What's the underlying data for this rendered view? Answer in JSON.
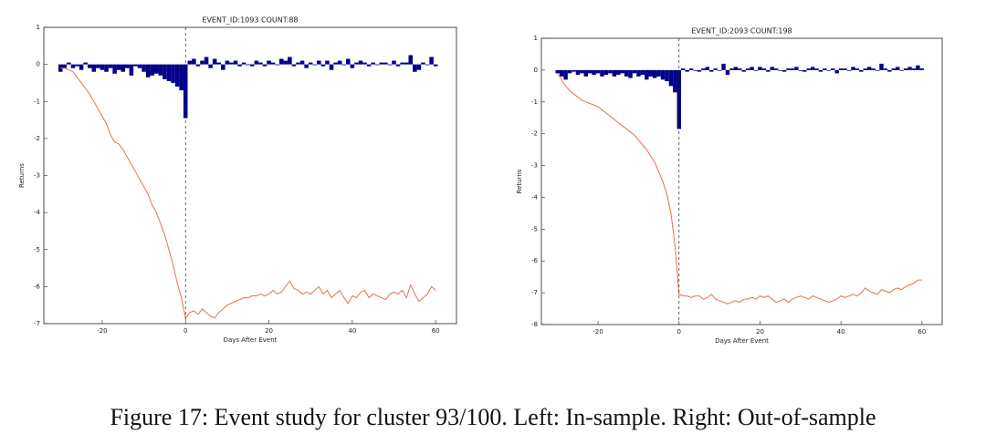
{
  "chart_data": [
    {
      "type": "event-study",
      "title": "EVENT_ID:1093    COUNT:88",
      "xlabel": "Days After Event",
      "ylabel": "Returns",
      "x": [
        -30,
        -29,
        -28,
        -27,
        -26,
        -25,
        -24,
        -23,
        -22,
        -21,
        -20,
        -19,
        -18,
        -17,
        -16,
        -15,
        -14,
        -13,
        -12,
        -11,
        -10,
        -9,
        -8,
        -7,
        -6,
        -5,
        -4,
        -3,
        -2,
        -1,
        0,
        1,
        2,
        3,
        4,
        5,
        6,
        7,
        8,
        9,
        10,
        11,
        12,
        13,
        14,
        15,
        16,
        17,
        18,
        19,
        20,
        21,
        22,
        23,
        24,
        25,
        26,
        27,
        28,
        29,
        30,
        31,
        32,
        33,
        34,
        35,
        36,
        37,
        38,
        39,
        40,
        41,
        42,
        43,
        44,
        45,
        46,
        47,
        48,
        49,
        50,
        51,
        52,
        53,
        54,
        55,
        56,
        57,
        58,
        59,
        60
      ],
      "series": [
        {
          "type": "bar",
          "color": "#00008b",
          "values": [
            -0.2,
            -0.1,
            0.05,
            -0.1,
            -0.05,
            -0.15,
            0.05,
            -0.1,
            -0.2,
            -0.1,
            -0.15,
            -0.2,
            -0.1,
            -0.25,
            -0.15,
            -0.2,
            -0.1,
            -0.3,
            -0.05,
            -0.1,
            -0.2,
            -0.35,
            -0.3,
            -0.25,
            -0.3,
            -0.4,
            -0.45,
            -0.5,
            -0.6,
            -0.7,
            -1.45,
            0.1,
            0.15,
            -0.05,
            0.1,
            0.2,
            -0.1,
            0.15,
            0.05,
            -0.15,
            0.1,
            0.05,
            0.1,
            -0.05,
            0.05,
            0.0,
            -0.05,
            0.1,
            0.05,
            -0.05,
            0.1,
            0.05,
            0.0,
            0.15,
            0.1,
            0.2,
            -0.05,
            0.05,
            0.1,
            -0.1,
            0.05,
            0.0,
            0.1,
            -0.05,
            0.1,
            -0.15,
            0.05,
            0.1,
            0.0,
            0.15,
            -0.1,
            0.05,
            0.1,
            0.05,
            -0.05,
            0.05,
            0.0,
            0.05,
            0.05,
            0.0,
            0.1,
            -0.05,
            0.05,
            0.05,
            0.25,
            -0.2,
            -0.15,
            0.05,
            0.0,
            0.2,
            -0.05
          ]
        },
        {
          "type": "line",
          "color": "#e8704a",
          "values": [
            -0.1,
            -0.1,
            -0.15,
            -0.2,
            -0.35,
            -0.5,
            -0.65,
            -0.8,
            -1.0,
            -1.2,
            -1.4,
            -1.6,
            -1.9,
            -2.1,
            -2.15,
            -2.3,
            -2.5,
            -2.7,
            -2.9,
            -3.1,
            -3.3,
            -3.5,
            -3.8,
            -4.0,
            -4.3,
            -4.6,
            -5.0,
            -5.4,
            -5.9,
            -6.3,
            -6.85,
            -6.7,
            -6.65,
            -6.75,
            -6.6,
            -6.7,
            -6.8,
            -6.85,
            -6.7,
            -6.6,
            -6.5,
            -6.45,
            -6.4,
            -6.35,
            -6.3,
            -6.3,
            -6.25,
            -6.25,
            -6.2,
            -6.25,
            -6.2,
            -6.1,
            -6.2,
            -6.15,
            -6.0,
            -5.85,
            -6.05,
            -6.1,
            -6.2,
            -6.15,
            -6.2,
            -6.1,
            -6.0,
            -6.2,
            -6.1,
            -6.3,
            -6.2,
            -6.1,
            -6.3,
            -6.45,
            -6.25,
            -6.3,
            -6.15,
            -6.1,
            -6.3,
            -6.2,
            -6.25,
            -6.3,
            -6.35,
            -6.2,
            -6.15,
            -6.2,
            -6.1,
            -6.3,
            -5.95,
            -6.2,
            -6.4,
            -6.3,
            -6.2,
            -6.0,
            -6.1
          ]
        }
      ],
      "xlim": [
        -34,
        65
      ],
      "xticks": [
        -20,
        0,
        20,
        40,
        60
      ],
      "ylim": [
        -7,
        1
      ],
      "yticks": [
        -7,
        -6,
        -5,
        -4,
        -3,
        -2,
        -1,
        0,
        1
      ],
      "vline": 0
    },
    {
      "type": "event-study",
      "title": "EVENT_ID:2093    COUNT:198",
      "xlabel": "Days After Event",
      "ylabel": "Returns",
      "x": [
        -30,
        -29,
        -28,
        -27,
        -26,
        -25,
        -24,
        -23,
        -22,
        -21,
        -20,
        -19,
        -18,
        -17,
        -16,
        -15,
        -14,
        -13,
        -12,
        -11,
        -10,
        -9,
        -8,
        -7,
        -6,
        -5,
        -4,
        -3,
        -2,
        -1,
        0,
        1,
        2,
        3,
        4,
        5,
        6,
        7,
        8,
        9,
        10,
        11,
        12,
        13,
        14,
        15,
        16,
        17,
        18,
        19,
        20,
        21,
        22,
        23,
        24,
        25,
        26,
        27,
        28,
        29,
        30,
        31,
        32,
        33,
        34,
        35,
        36,
        37,
        38,
        39,
        40,
        41,
        42,
        43,
        44,
        45,
        46,
        47,
        48,
        49,
        50,
        51,
        52,
        53,
        54,
        55,
        56,
        57,
        58,
        59,
        60
      ],
      "series": [
        {
          "type": "bar",
          "color": "#00008b",
          "values": [
            -0.1,
            -0.2,
            -0.3,
            -0.1,
            -0.05,
            -0.15,
            -0.1,
            -0.2,
            -0.1,
            -0.15,
            -0.1,
            -0.2,
            -0.15,
            -0.1,
            -0.2,
            -0.15,
            -0.1,
            -0.2,
            -0.25,
            -0.1,
            -0.2,
            -0.15,
            -0.3,
            -0.2,
            -0.25,
            -0.2,
            -0.3,
            -0.35,
            -0.5,
            -0.7,
            -1.85,
            0.05,
            -0.05,
            0.05,
            0.0,
            -0.05,
            0.05,
            0.1,
            -0.05,
            0.05,
            0.0,
            0.2,
            -0.15,
            0.05,
            0.1,
            0.05,
            -0.05,
            0.05,
            0.1,
            0.0,
            0.1,
            0.05,
            -0.05,
            0.1,
            0.05,
            0.0,
            -0.05,
            0.05,
            0.05,
            0.1,
            0.0,
            -0.05,
            0.05,
            0.1,
            0.05,
            -0.05,
            0.05,
            0.0,
            0.05,
            -0.1,
            0.05,
            0.05,
            0.0,
            0.1,
            0.05,
            -0.05,
            0.05,
            0.1,
            0.05,
            0.0,
            0.2,
            0.05,
            -0.05,
            0.05,
            0.1,
            0.0,
            0.05,
            0.1,
            0.05,
            0.15,
            0.05
          ]
        },
        {
          "type": "line",
          "color": "#e8704a",
          "values": [
            -0.1,
            -0.3,
            -0.5,
            -0.65,
            -0.75,
            -0.85,
            -0.95,
            -1.0,
            -1.05,
            -1.1,
            -1.15,
            -1.25,
            -1.35,
            -1.45,
            -1.55,
            -1.65,
            -1.75,
            -1.85,
            -1.95,
            -2.05,
            -2.2,
            -2.35,
            -2.5,
            -2.7,
            -2.9,
            -3.2,
            -3.5,
            -3.9,
            -4.5,
            -5.5,
            -7.05,
            -7.1,
            -7.1,
            -7.15,
            -7.1,
            -7.1,
            -7.2,
            -7.15,
            -7.05,
            -7.2,
            -7.25,
            -7.3,
            -7.35,
            -7.3,
            -7.25,
            -7.3,
            -7.2,
            -7.2,
            -7.15,
            -7.2,
            -7.1,
            -7.15,
            -7.1,
            -7.2,
            -7.3,
            -7.25,
            -7.2,
            -7.3,
            -7.2,
            -7.15,
            -7.1,
            -7.15,
            -7.2,
            -7.1,
            -7.15,
            -7.2,
            -7.25,
            -7.3,
            -7.25,
            -7.2,
            -7.1,
            -7.15,
            -7.1,
            -7.05,
            -7.1,
            -7.0,
            -6.85,
            -6.95,
            -7.0,
            -7.05,
            -6.9,
            -6.95,
            -7.0,
            -6.9,
            -6.85,
            -6.9,
            -6.8,
            -6.75,
            -6.7,
            -6.6,
            -6.6
          ]
        }
      ],
      "xlim": [
        -34,
        65
      ],
      "xticks": [
        -20,
        0,
        20,
        40,
        60
      ],
      "ylim": [
        -8,
        1
      ],
      "yticks": [
        -8,
        -7,
        -6,
        -5,
        -4,
        -3,
        -2,
        -1,
        0,
        1
      ],
      "vline": 0
    }
  ],
  "caption": "Figure 17: Event study for cluster 93/100. Left: In-sample. Right: Out-of-sample"
}
